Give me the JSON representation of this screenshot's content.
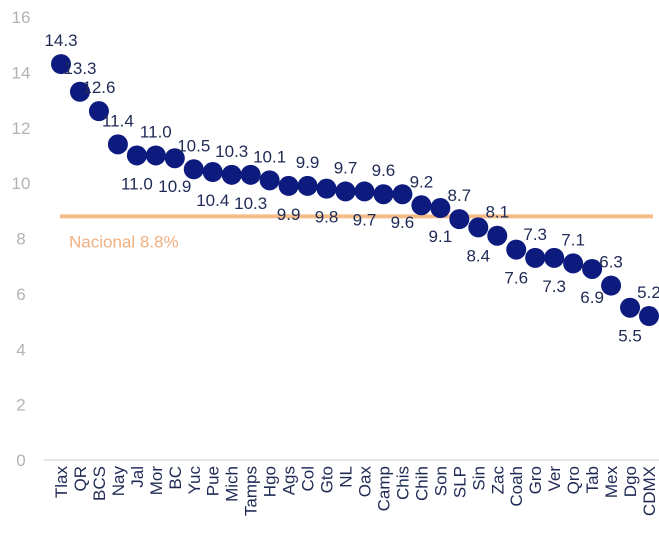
{
  "chart_data": {
    "type": "scatter",
    "categories": [
      "Tlax",
      "QR",
      "BCS",
      "Nay",
      "Jal",
      "Mor",
      "BC",
      "Yuc",
      "Pue",
      "Mich",
      "Tamps",
      "Hgo",
      "Ags",
      "Col",
      "Gto",
      "NL",
      "Oax",
      "Camp",
      "Chis",
      "Chih",
      "Son",
      "SLP",
      "Sin",
      "Zac",
      "Coah",
      "Gro",
      "Ver",
      "Qro",
      "Tab",
      "Mex",
      "Dgo",
      "CDMX"
    ],
    "values": [
      14.3,
      13.3,
      12.6,
      11.4,
      11.0,
      11.0,
      10.9,
      10.5,
      10.4,
      10.3,
      10.3,
      10.1,
      9.9,
      9.9,
      9.8,
      9.7,
      9.7,
      9.6,
      9.6,
      9.2,
      9.1,
      8.7,
      8.4,
      8.1,
      7.6,
      7.3,
      7.3,
      7.1,
      6.9,
      6.3,
      5.5,
      5.2
    ],
    "data_labels": [
      "14.3",
      "13.3",
      "12.6",
      "11.4",
      "11.0",
      "11.0",
      "10.9",
      "10.5",
      "10.4",
      "10.3",
      "10.3",
      "10.1",
      "9.9",
      "9.9",
      "9.8",
      "9.7",
      "9.7",
      "9.6",
      "9.6",
      "9.2",
      "9.1",
      "8.7",
      "8.4",
      "8.1",
      "7.6",
      "7.3",
      "7.3",
      "7.1",
      "6.9",
      "6.3",
      "5.5",
      "5.2"
    ],
    "label_positions": [
      "above",
      "above",
      "above",
      "above",
      "below",
      "above",
      "below",
      "above",
      "below",
      "above",
      "below",
      "above",
      "below",
      "above",
      "below",
      "above",
      "below",
      "above",
      "below",
      "above",
      "below",
      "above",
      "below",
      "above",
      "below",
      "above",
      "below",
      "above",
      "below",
      "above",
      "below",
      "above"
    ],
    "y_ticks": [
      "0",
      "2",
      "4",
      "6",
      "8",
      "10",
      "12",
      "14",
      "16"
    ],
    "ylim": [
      0,
      16
    ],
    "grid": false,
    "reference_line": {
      "label": "Nacional 8.8%",
      "value": 8.8
    },
    "colors": {
      "marker": "#0d1a7e",
      "reference": "#f5bc8a",
      "reference_text": "#f0b080",
      "axis_text": "#b3b3b3",
      "label_text": "#1f2a55",
      "axis_line": "#cccccc"
    }
  }
}
